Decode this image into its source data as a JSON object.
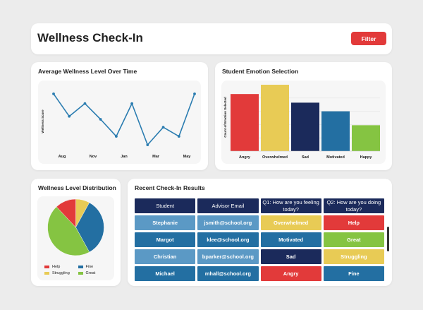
{
  "header": {
    "title": "Wellness Check-In",
    "filter_label": "Filter"
  },
  "colors": {
    "accent_red": "#e23a3a",
    "navy": "#1b2a5b",
    "blue": "#236fa2",
    "light_blue": "#5b99c5",
    "yellow": "#e8cb55",
    "green": "#85c442"
  },
  "line_panel": {
    "title": "Average Wellness Level Over Time"
  },
  "bar_panel": {
    "title": "Student Emotion Selection"
  },
  "pie_panel": {
    "title": "Wellness Level Distribution",
    "legend": [
      {
        "label": "Help",
        "color": "#e23a3a"
      },
      {
        "label": "Fine",
        "color": "#236fa2"
      },
      {
        "label": "Struggling",
        "color": "#e8cb55"
      },
      {
        "label": "Great",
        "color": "#85c442"
      }
    ]
  },
  "table_panel": {
    "title": "Recent Check-In Results",
    "columns": [
      "Student",
      "Advisor Email",
      "Q1: How are you feeling today?",
      "Q2: How are you doing today?"
    ],
    "rows": [
      {
        "cells": [
          "Stephanie",
          "jsmith@school.org",
          "Overwhelmed",
          "Help"
        ],
        "colors": [
          "#5b99c5",
          "#5b99c5",
          "#e8cb55",
          "#e23a3a"
        ]
      },
      {
        "cells": [
          "Margot",
          "klee@school.org",
          "Motivated",
          "Great"
        ],
        "colors": [
          "#236fa2",
          "#236fa2",
          "#236fa2",
          "#85c442"
        ]
      },
      {
        "cells": [
          "Christian",
          "bparker@school.org",
          "Sad",
          "Struggling"
        ],
        "colors": [
          "#5b99c5",
          "#5b99c5",
          "#1b2a5b",
          "#e8cb55"
        ]
      },
      {
        "cells": [
          "Michael",
          "mhall@school.org",
          "Angry",
          "Fine"
        ],
        "colors": [
          "#236fa2",
          "#236fa2",
          "#e23a3a",
          "#236fa2"
        ]
      }
    ]
  },
  "chart_data": [
    {
      "type": "line",
      "title": "Average Wellness Level Over Time",
      "xlabel": "",
      "ylabel": "Wellness Score",
      "tick_labels": [
        "Aug",
        "Nov",
        "Jan",
        "Mar",
        "May"
      ],
      "values": [
        0.92,
        0.55,
        0.76,
        0.5,
        0.22,
        0.76,
        0.08,
        0.37,
        0.22,
        0.92
      ],
      "ylim": [
        0,
        1
      ],
      "color": "#2a7cb0",
      "grid": false
    },
    {
      "type": "bar",
      "title": "Student Emotion Selection",
      "xlabel": "",
      "ylabel": "Count of Emotion Selected",
      "categories": [
        "Angry",
        "Overwhelmed",
        "Sad",
        "Motivated",
        "Happy"
      ],
      "values": [
        86,
        100,
        73,
        60,
        39
      ],
      "colors": [
        "#e23a3a",
        "#e8cb55",
        "#1b2a5b",
        "#236fa2",
        "#85c442"
      ],
      "ylim": [
        0,
        100
      ],
      "grid": true
    },
    {
      "type": "pie",
      "title": "Wellness Level Distribution",
      "labels": [
        "Struggling",
        "Fine",
        "Great",
        "Help"
      ],
      "values": [
        8,
        34,
        46,
        12
      ],
      "colors": [
        "#e8cb55",
        "#236fa2",
        "#85c442",
        "#e23a3a"
      ],
      "legend_position": "bottom"
    }
  ]
}
